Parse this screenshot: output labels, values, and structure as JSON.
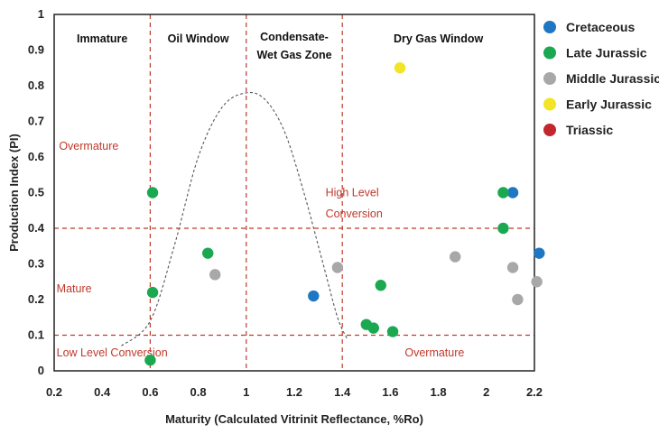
{
  "chart_data": {
    "type": "scatter",
    "xlabel": "Maturity (Calculated Vitrinit Reflectance, %Ro)",
    "ylabel": "Production Index (PI)",
    "xlim": [
      0.2,
      2.2
    ],
    "ylim": [
      0,
      1
    ],
    "x_ticks": [
      "0.2",
      "0.4",
      "0.6",
      "0.8",
      "1",
      "1.2",
      "1.4",
      "1.6",
      "1.8",
      "2",
      "2.2"
    ],
    "y_ticks": [
      "0",
      "0.1",
      "0.2",
      "0.3",
      "0.4",
      "0.5",
      "0.6",
      "0.7",
      "0.8",
      "0.9",
      "1"
    ],
    "legend_position": "right",
    "zones": [
      {
        "label": "Immature",
        "x_start": 0.2,
        "x_end": 0.6
      },
      {
        "label": "Oil Window",
        "x_start": 0.6,
        "x_end": 1.0
      },
      {
        "label": "Condensate-",
        "label2": "Wet Gas Zone",
        "x_start": 1.0,
        "x_end": 1.4
      },
      {
        "label": "Dry Gas Window",
        "x_start": 1.4,
        "x_end": 2.2
      }
    ],
    "vertical_lines_x": [
      0.6,
      1.0,
      1.4
    ],
    "horizontal_lines_y": [
      0.1,
      0.4
    ],
    "annotations": [
      {
        "text": "Overmature",
        "x": 0.22,
        "y": 0.62
      },
      {
        "text": "High Level",
        "x": 1.33,
        "y": 0.49
      },
      {
        "text": "Conversion",
        "x": 1.33,
        "y": 0.43
      },
      {
        "text": "Mature",
        "x": 0.21,
        "y": 0.22
      },
      {
        "text": "Low Level Conversion",
        "x": 0.21,
        "y": 0.04
      },
      {
        "text": "Overmature",
        "x": 1.66,
        "y": 0.04
      }
    ],
    "curve": [
      [
        0.48,
        0.07
      ],
      [
        0.6,
        0.14
      ],
      [
        0.7,
        0.35
      ],
      [
        0.8,
        0.6
      ],
      [
        0.9,
        0.74
      ],
      [
        1.0,
        0.78
      ],
      [
        1.08,
        0.76
      ],
      [
        1.16,
        0.67
      ],
      [
        1.24,
        0.5
      ],
      [
        1.32,
        0.3
      ],
      [
        1.38,
        0.15
      ],
      [
        1.42,
        0.09
      ]
    ],
    "series": [
      {
        "name": "Cretaceous",
        "color": "#1f77c4",
        "points": [
          [
            1.28,
            0.21
          ],
          [
            2.11,
            0.5
          ],
          [
            2.22,
            0.33
          ]
        ]
      },
      {
        "name": "Late Jurassic",
        "color": "#1aa851",
        "points": [
          [
            0.61,
            0.5
          ],
          [
            0.61,
            0.22
          ],
          [
            0.6,
            0.03
          ],
          [
            0.84,
            0.33
          ],
          [
            1.5,
            0.13
          ],
          [
            1.53,
            0.12
          ],
          [
            1.56,
            0.24
          ],
          [
            1.61,
            0.11
          ],
          [
            2.07,
            0.5
          ],
          [
            2.07,
            0.4
          ]
        ]
      },
      {
        "name": "Middle Jurassic",
        "color": "#a8a8a8",
        "points": [
          [
            0.87,
            0.27
          ],
          [
            1.38,
            0.29
          ],
          [
            1.87,
            0.32
          ],
          [
            2.11,
            0.29
          ],
          [
            2.13,
            0.2
          ],
          [
            2.21,
            0.25
          ]
        ]
      },
      {
        "name": "Early Jurassic",
        "color": "#f2e426",
        "points": [
          [
            1.64,
            0.85
          ]
        ]
      },
      {
        "name": "Triassic",
        "color": "#c1272d",
        "points": []
      }
    ]
  }
}
